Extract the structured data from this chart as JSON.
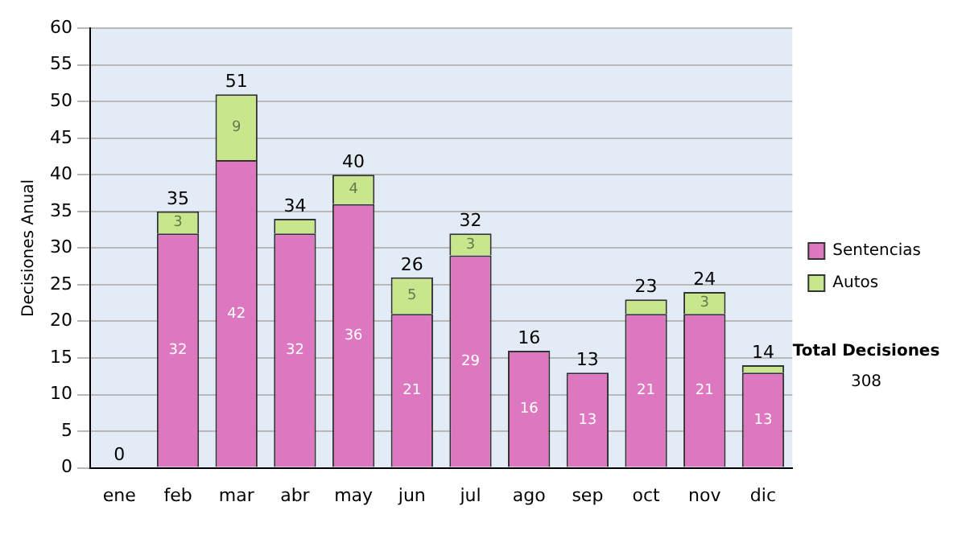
{
  "chart_data": {
    "type": "bar",
    "stacked": true,
    "ylabel": "Decisiones Anual",
    "categories": [
      "ene",
      "feb",
      "mar",
      "abr",
      "may",
      "jun",
      "jul",
      "ago",
      "sep",
      "oct",
      "nov",
      "dic"
    ],
    "series": [
      {
        "name": "Sentencias",
        "color": "#dd77c0",
        "values": [
          0,
          32,
          42,
          32,
          36,
          21,
          29,
          16,
          13,
          21,
          21,
          13
        ],
        "value_labels": [
          null,
          "32",
          "42",
          "32",
          "36",
          "21",
          "29",
          "16",
          "13",
          "21",
          "21",
          "13"
        ]
      },
      {
        "name": "Autos",
        "color": "#c8e68c",
        "values": [
          0,
          3,
          9,
          2,
          4,
          5,
          3,
          0,
          0,
          2,
          3,
          1
        ],
        "value_labels": [
          null,
          "3",
          "9",
          null,
          "4",
          "5",
          "3",
          null,
          null,
          null,
          "3",
          null
        ]
      }
    ],
    "totals": [
      "0",
      "35",
      "51",
      "34",
      "40",
      "26",
      "32",
      "16",
      "13",
      "23",
      "24",
      "14"
    ],
    "ylim": [
      0,
      60
    ],
    "yticks": [
      0,
      5,
      10,
      15,
      20,
      25,
      30,
      35,
      40,
      45,
      50,
      55,
      60
    ],
    "grid": "y",
    "legend": "right",
    "annotations": [
      "Total Decisiones",
      "308"
    ]
  }
}
